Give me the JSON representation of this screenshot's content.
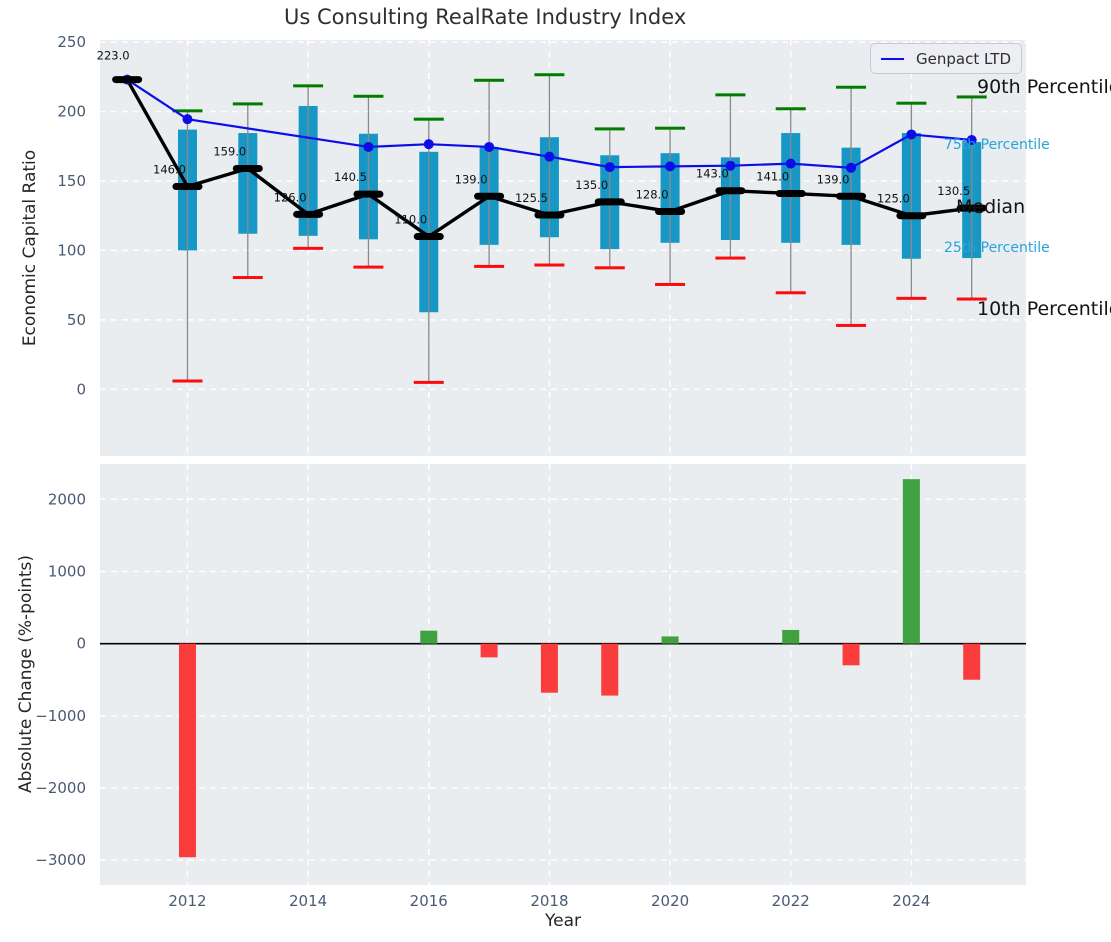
{
  "title": "Us Consulting RealRate Industry Index",
  "legend": {
    "label": "Genpact LTD"
  },
  "right_labels": {
    "p90": {
      "text": "90th Percentile",
      "color": "#141414"
    },
    "p75": {
      "text": "75th Percentile",
      "color": "#27a4d9"
    },
    "median": {
      "text": "Median",
      "color": "#141414"
    },
    "p25": {
      "text": "25th Percentile",
      "color": "#27a4d9"
    },
    "p10": {
      "text": "10th Percentile",
      "color": "#141414"
    }
  },
  "chart_data": [
    {
      "type": "box-whisker-with-line",
      "title": "Us Consulting RealRate Industry Index",
      "ylabel": "Economic Capital Ratio",
      "ylim": [
        -48,
        251.5
      ],
      "yticks": [
        0,
        50,
        100,
        150,
        200,
        250
      ],
      "xlim": [
        2010.55,
        2025.9
      ],
      "xticks": [
        2012,
        2014,
        2016,
        2018,
        2020,
        2022,
        2024
      ],
      "grid": true,
      "legend_position": "upper right",
      "x": [
        2011,
        2012,
        2013,
        2014,
        2015,
        2016,
        2017,
        2018,
        2019,
        2020,
        2021,
        2022,
        2023,
        2024,
        2025
      ],
      "median": [
        223.0,
        146.0,
        159.0,
        126.0,
        140.5,
        110.0,
        139.0,
        125.5,
        135.0,
        128.0,
        143.0,
        141.0,
        139.0,
        125.0,
        130.5
      ],
      "p75": [
        223,
        187,
        184.5,
        204,
        184,
        171,
        174.5,
        181.5,
        168.5,
        170,
        167,
        184.5,
        174,
        184.5,
        178
      ],
      "p25": [
        223,
        100,
        112,
        110.5,
        108,
        55.5,
        104,
        109.5,
        101,
        105.5,
        107.5,
        105.5,
        104,
        94,
        94.5
      ],
      "p90": [
        223,
        200.5,
        205.5,
        218.5,
        211,
        194.5,
        222.5,
        226.5,
        187.5,
        188,
        212,
        202,
        217.5,
        206,
        210.5
      ],
      "p10": [
        223,
        6,
        80.5,
        101.5,
        88,
        5,
        88.5,
        89.5,
        87.5,
        75.5,
        94.5,
        69.5,
        46,
        65.5,
        65
      ],
      "annotations": [
        "223.0",
        "146.0",
        "159.0",
        "126.0",
        "140.5",
        "110.0",
        "139.0",
        "125.5",
        "135.0",
        "128.0",
        "143.0",
        "141.0",
        "139.0",
        "125.0",
        "130.5"
      ],
      "series": [
        {
          "name": "Genpact LTD",
          "values": [
            223,
            194.5,
            null,
            null,
            174.5,
            176.5,
            174.5,
            167.5,
            160,
            160.5,
            161,
            162.5,
            159.5,
            183.5,
            179.5
          ],
          "color": "#0d0de8"
        }
      ],
      "colors": {
        "box": "#1697c6",
        "whisker": "#8a8a8a",
        "cap_90th": "#007d00",
        "cap_10th": "#fb0d0d",
        "median": "#000000",
        "background": "#e9edf0",
        "grid": "#ffffff",
        "tick": "#4a5a74"
      }
    },
    {
      "type": "bar",
      "ylabel": "Absolute Change (%-points)",
      "xlabel": "Year",
      "ylim": [
        -3345,
        2490
      ],
      "yticks": [
        -3000,
        -2000,
        -1000,
        0,
        1000,
        2000
      ],
      "xlim": [
        2010.55,
        2025.9
      ],
      "xticks": [
        2012,
        2014,
        2016,
        2018,
        2020,
        2022,
        2024
      ],
      "grid": true,
      "zero_line": true,
      "x": [
        2011,
        2012,
        2013,
        2014,
        2015,
        2016,
        2017,
        2018,
        2019,
        2020,
        2021,
        2022,
        2023,
        2024,
        2025
      ],
      "values": [
        0,
        -2960,
        0,
        0,
        0,
        180,
        -190,
        -680,
        -720,
        100,
        0,
        190,
        -300,
        2280,
        -500
      ],
      "colors": {
        "positive": "#3fa13f",
        "negative": "#fb3c3c",
        "background": "#e9edf0",
        "grid": "#ffffff",
        "tick": "#4a5a74",
        "zero_line": "#000000"
      }
    }
  ]
}
